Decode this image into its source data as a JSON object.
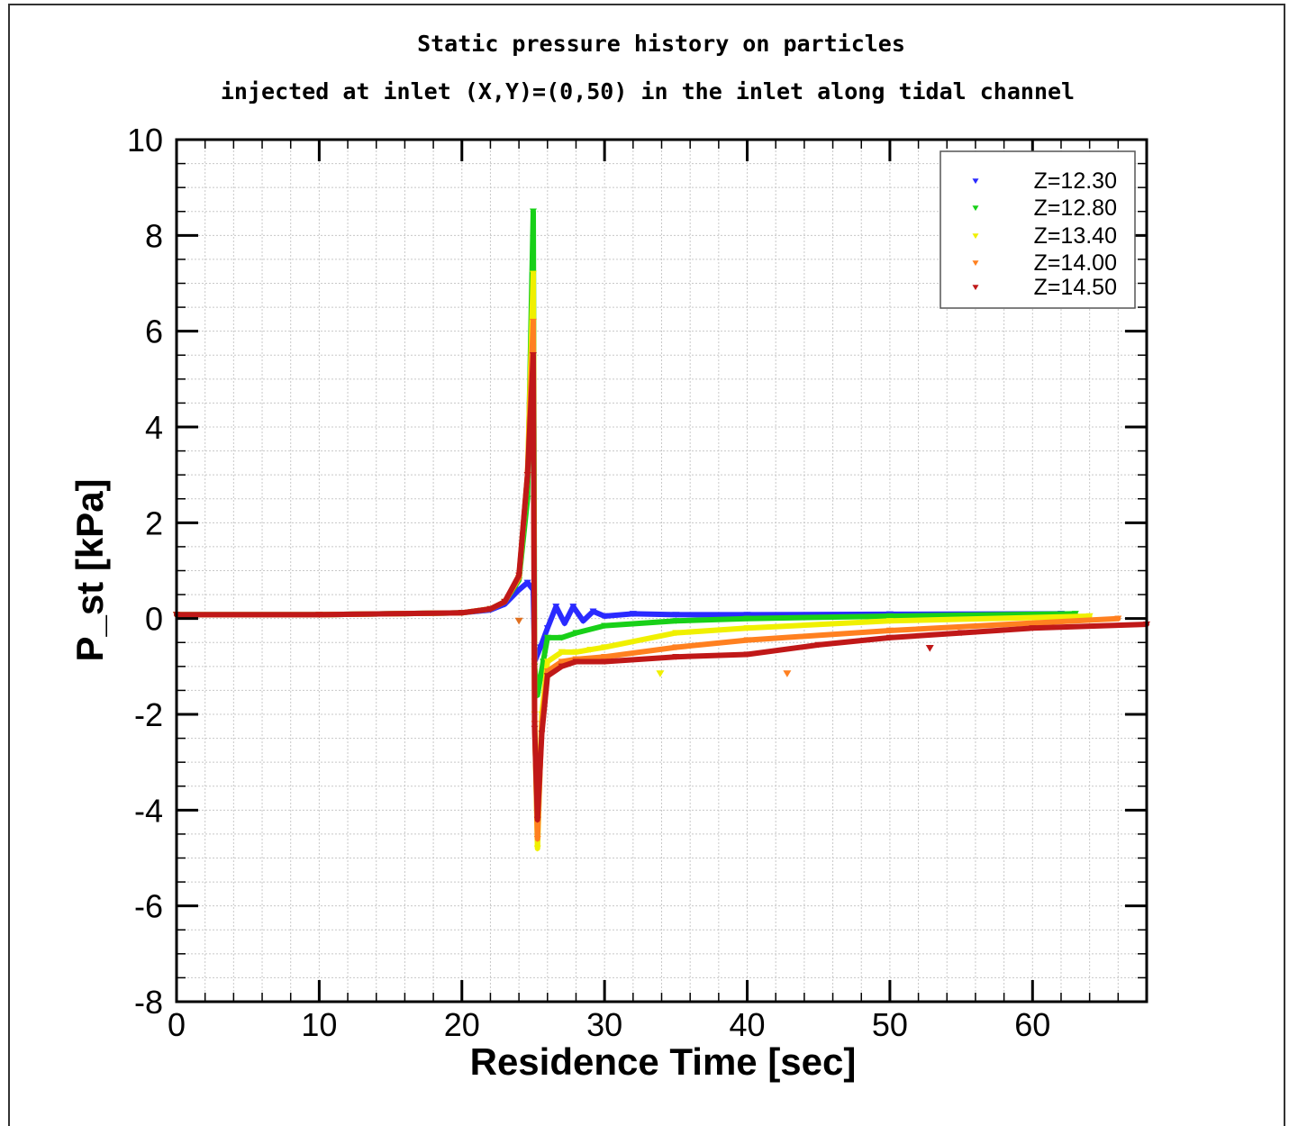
{
  "chart_data": {
    "type": "scatter",
    "title": "Static pressure history on particles",
    "subtitle": "injected at inlet (X,Y)=(0,50) in the inlet along tidal channel",
    "xlabel": "Residence Time [sec]",
    "ylabel": "P_st [kPa]",
    "xlim": [
      0,
      68
    ],
    "ylim": [
      -8,
      10
    ],
    "xticks": [
      "0",
      "10",
      "20",
      "30",
      "40",
      "50",
      "60"
    ],
    "yticks": [
      "10",
      "8",
      "6",
      "4",
      "2",
      "0",
      "-2",
      "-4",
      "-6",
      "-8"
    ],
    "grid": true,
    "legend_position": "top-right",
    "marker": "triangle-down",
    "series": [
      {
        "name": "Z=12.30",
        "color": "#2a2aff",
        "points": [
          [
            0,
            0.08
          ],
          [
            10,
            0.08
          ],
          [
            20,
            0.12
          ],
          [
            22,
            0.18
          ],
          [
            23,
            0.3
          ],
          [
            24,
            0.6
          ],
          [
            24.6,
            0.75
          ],
          [
            25,
            0.6
          ],
          [
            25.1,
            -0.9
          ],
          [
            25.5,
            -0.6
          ],
          [
            26,
            -0.2
          ],
          [
            26.6,
            0.25
          ],
          [
            27.2,
            -0.1
          ],
          [
            27.8,
            0.25
          ],
          [
            28.5,
            -0.05
          ],
          [
            29.2,
            0.15
          ],
          [
            30,
            0.05
          ],
          [
            32,
            0.1
          ],
          [
            35,
            0.08
          ],
          [
            40,
            0.08
          ],
          [
            50,
            0.09
          ],
          [
            62,
            0.1
          ]
        ]
      },
      {
        "name": "Z=12.80",
        "color": "#18d018",
        "points": [
          [
            0,
            0.08
          ],
          [
            10,
            0.08
          ],
          [
            20,
            0.12
          ],
          [
            22,
            0.2
          ],
          [
            23,
            0.35
          ],
          [
            24,
            0.8
          ],
          [
            24.6,
            2.5
          ],
          [
            25,
            8.5
          ],
          [
            25.1,
            -1.0
          ],
          [
            25.3,
            -1.6
          ],
          [
            25.7,
            -0.9
          ],
          [
            26,
            -0.4
          ],
          [
            27,
            -0.4
          ],
          [
            28,
            -0.3
          ],
          [
            30,
            -0.15
          ],
          [
            35,
            -0.05
          ],
          [
            40,
            0.0
          ],
          [
            50,
            0.05
          ],
          [
            63,
            0.1
          ]
        ]
      },
      {
        "name": "Z=13.40",
        "color": "#f0f000",
        "points": [
          [
            0,
            0.08
          ],
          [
            10,
            0.08
          ],
          [
            20,
            0.12
          ],
          [
            22,
            0.2
          ],
          [
            23,
            0.35
          ],
          [
            24,
            0.85
          ],
          [
            24.6,
            3.0
          ],
          [
            25,
            7.2
          ],
          [
            25.1,
            -2.0
          ],
          [
            25.3,
            -4.8
          ],
          [
            25.6,
            -2.0
          ],
          [
            26,
            -0.9
          ],
          [
            27,
            -0.7
          ],
          [
            28,
            -0.7
          ],
          [
            29,
            -0.65
          ],
          [
            30,
            -0.6
          ],
          [
            35,
            -0.3
          ],
          [
            40,
            -0.2
          ],
          [
            50,
            -0.05
          ],
          [
            64,
            0.05
          ]
        ]
      },
      {
        "name": "Z=14.00",
        "color": "#ff8020",
        "points": [
          [
            0,
            0.08
          ],
          [
            10,
            0.08
          ],
          [
            20,
            0.12
          ],
          [
            22,
            0.2
          ],
          [
            23,
            0.35
          ],
          [
            24,
            0.85
          ],
          [
            24.6,
            3.0
          ],
          [
            25,
            6.2
          ],
          [
            25.1,
            -2.2
          ],
          [
            25.3,
            -4.6
          ],
          [
            25.6,
            -2.2
          ],
          [
            26,
            -1.1
          ],
          [
            27,
            -0.9
          ],
          [
            28,
            -0.85
          ],
          [
            30,
            -0.8
          ],
          [
            35,
            -0.6
          ],
          [
            40,
            -0.45
          ],
          [
            50,
            -0.25
          ],
          [
            66,
            0.0
          ]
        ]
      },
      {
        "name": "Z=14.50",
        "color": "#c01818",
        "points": [
          [
            0,
            0.08
          ],
          [
            10,
            0.08
          ],
          [
            20,
            0.12
          ],
          [
            22,
            0.2
          ],
          [
            23,
            0.35
          ],
          [
            24,
            0.9
          ],
          [
            24.6,
            3.0
          ],
          [
            25,
            5.5
          ],
          [
            25.1,
            -2.3
          ],
          [
            25.3,
            -4.2
          ],
          [
            25.6,
            -2.4
          ],
          [
            26,
            -1.2
          ],
          [
            27,
            -1.0
          ],
          [
            28,
            -0.9
          ],
          [
            30,
            -0.9
          ],
          [
            35,
            -0.8
          ],
          [
            40,
            -0.75
          ],
          [
            45,
            -0.55
          ],
          [
            50,
            -0.4
          ],
          [
            55,
            -0.3
          ],
          [
            60,
            -0.2
          ],
          [
            68,
            -0.12
          ]
        ]
      }
    ],
    "outliers": [
      {
        "x": 24.0,
        "y": -0.05,
        "series": "Z=14.50",
        "color": "#e07020"
      },
      {
        "x": 33.9,
        "y": -1.15,
        "series": "Z=13.40",
        "color": "#f0f000"
      },
      {
        "x": 42.8,
        "y": -1.15,
        "series": "Z=14.00",
        "color": "#ff8020"
      },
      {
        "x": 52.8,
        "y": -0.62,
        "series": "Z=14.50",
        "color": "#c01818"
      }
    ]
  }
}
